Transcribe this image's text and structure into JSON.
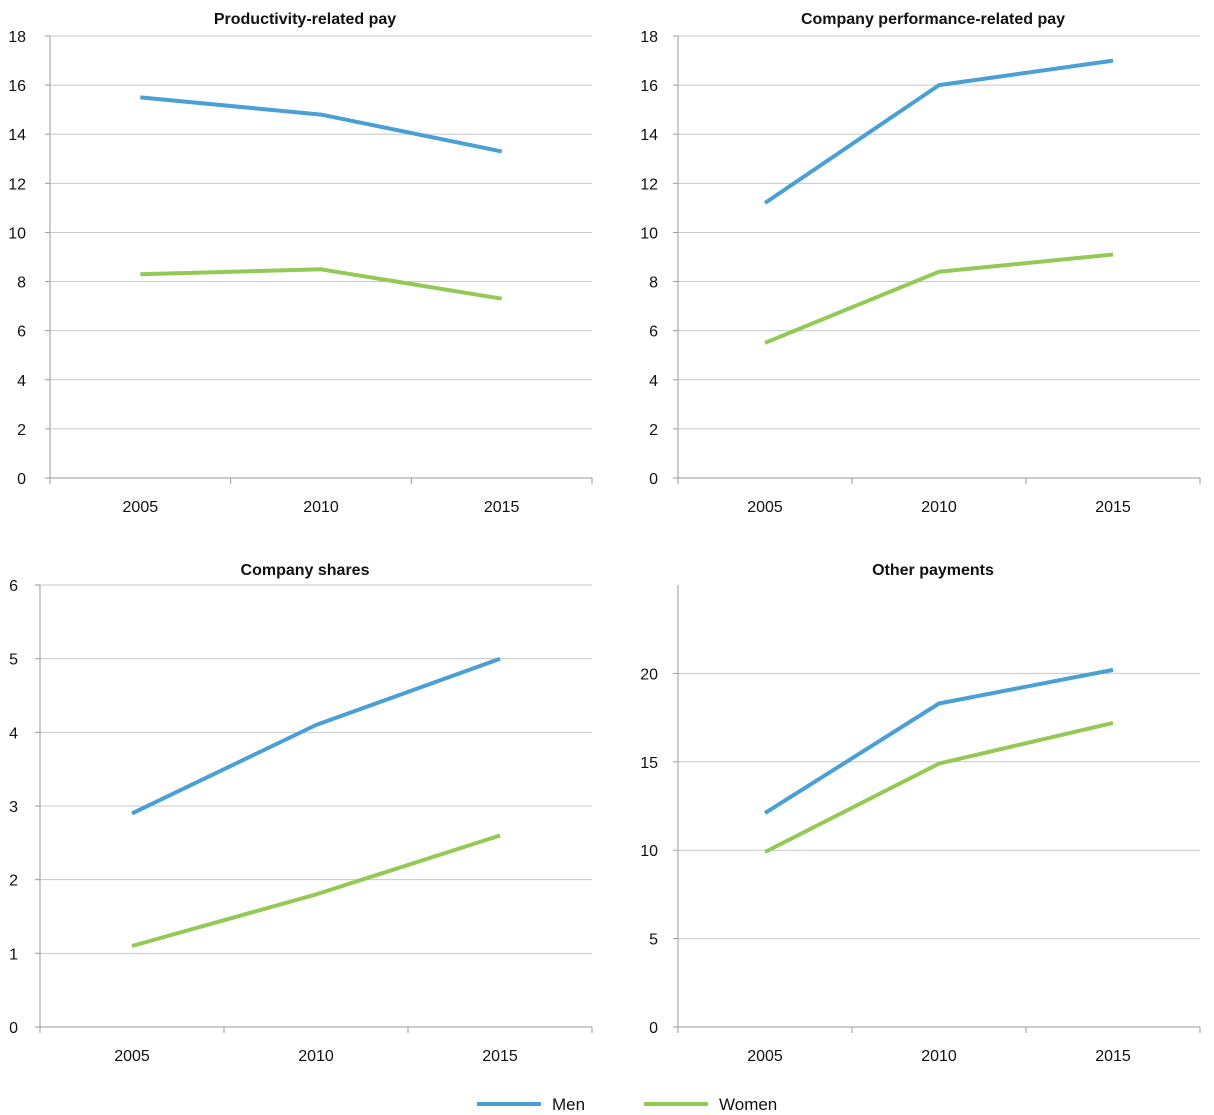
{
  "legend": {
    "items": [
      {
        "label": "Men",
        "color": "#4a9fd4"
      },
      {
        "label": "Women",
        "color": "#93c954"
      }
    ]
  },
  "chart_data": [
    {
      "type": "line",
      "title": "Productivity-related pay",
      "categories": [
        "2005",
        "2010",
        "2015"
      ],
      "ylim": [
        0,
        18
      ],
      "yticks": [
        0,
        2,
        4,
        6,
        8,
        10,
        12,
        14,
        16,
        18
      ],
      "grid": true,
      "series": [
        {
          "name": "Men",
          "values": [
            15.5,
            14.8,
            13.3
          ]
        },
        {
          "name": "Women",
          "values": [
            8.3,
            8.5,
            7.3
          ]
        }
      ]
    },
    {
      "type": "line",
      "title": "Company performance-related pay",
      "categories": [
        "2005",
        "2010",
        "2015"
      ],
      "ylim": [
        0,
        18
      ],
      "yticks": [
        0,
        2,
        4,
        6,
        8,
        10,
        12,
        14,
        16,
        18
      ],
      "grid": true,
      "series": [
        {
          "name": "Men",
          "values": [
            11.2,
            16.0,
            17.0
          ]
        },
        {
          "name": "Women",
          "values": [
            5.5,
            8.4,
            9.1
          ]
        }
      ]
    },
    {
      "type": "line",
      "title": "Company shares",
      "categories": [
        "2005",
        "2010",
        "2015"
      ],
      "ylim": [
        0,
        6
      ],
      "yticks": [
        0,
        1,
        2,
        3,
        4,
        5,
        6
      ],
      "grid": true,
      "series": [
        {
          "name": "Men",
          "values": [
            2.9,
            4.1,
            5.0
          ]
        },
        {
          "name": "Women",
          "values": [
            1.1,
            1.8,
            2.6
          ]
        }
      ]
    },
    {
      "type": "line",
      "title": "Other payments",
      "categories": [
        "2005",
        "2010",
        "2015"
      ],
      "ylim": [
        0,
        25
      ],
      "yticks": [
        0,
        5,
        10,
        15,
        20
      ],
      "grid": true,
      "series": [
        {
          "name": "Men",
          "values": [
            12.1,
            18.3,
            20.2
          ]
        },
        {
          "name": "Women",
          "values": [
            9.9,
            14.9,
            17.2
          ]
        }
      ]
    }
  ]
}
